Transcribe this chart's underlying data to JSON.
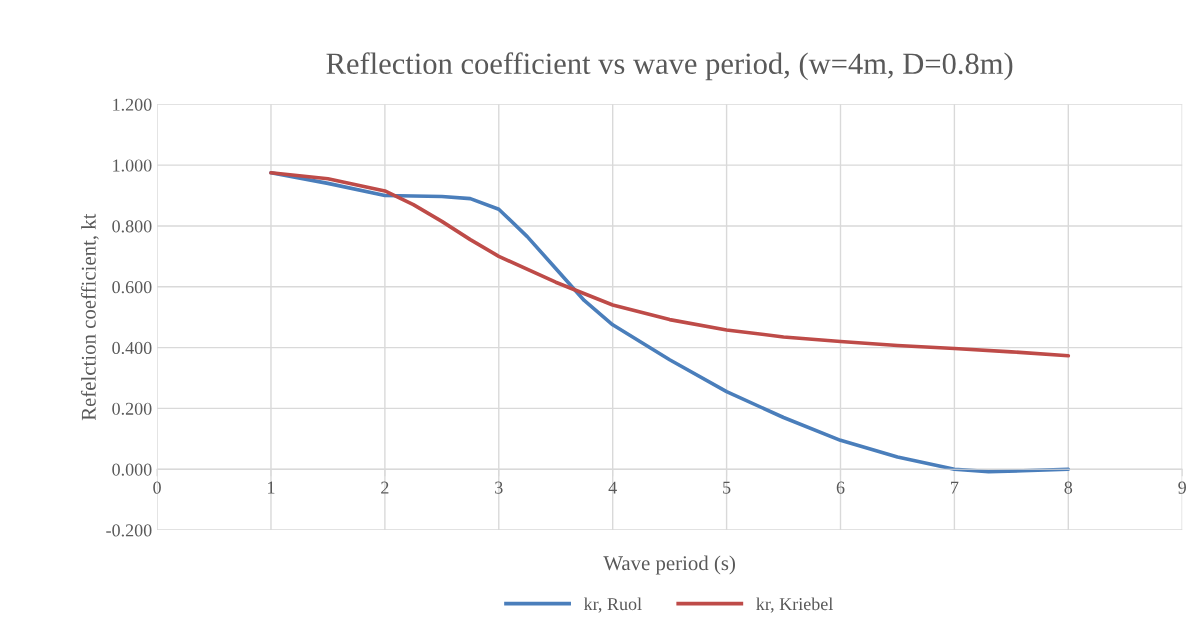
{
  "chart_data": {
    "type": "line",
    "title": "Reflection coefficient vs wave period, (w=4m, D=0.8m)",
    "xlabel": "Wave period (s)",
    "ylabel": "Refelction coefficient, kt",
    "series": [
      {
        "name": "kr, Ruol",
        "color": "#4a7ebb",
        "x": [
          1,
          1.5,
          2,
          2.5,
          2.75,
          3,
          3.25,
          3.5,
          3.75,
          4,
          4.5,
          5,
          5.5,
          6,
          6.5,
          7,
          7.3,
          7.6,
          8
        ],
        "values": [
          0.975,
          0.94,
          0.9,
          0.897,
          0.89,
          0.855,
          0.765,
          0.66,
          0.555,
          0.475,
          0.36,
          0.255,
          0.17,
          0.095,
          0.04,
          0.0,
          -0.008,
          -0.005,
          0.0
        ]
      },
      {
        "name": "kr, Kriebel",
        "color": "#be4b48",
        "x": [
          1,
          1.5,
          2,
          2.25,
          2.5,
          2.75,
          3,
          3.5,
          4,
          4.5,
          5,
          5.5,
          6,
          6.5,
          7,
          7.5,
          8
        ],
        "values": [
          0.975,
          0.955,
          0.915,
          0.87,
          0.815,
          0.755,
          0.7,
          0.615,
          0.54,
          0.492,
          0.458,
          0.435,
          0.42,
          0.407,
          0.397,
          0.386,
          0.373
        ]
      }
    ],
    "xlim": [
      0,
      9
    ],
    "xticks": [
      0,
      1,
      2,
      3,
      4,
      5,
      6,
      7,
      8,
      9
    ],
    "ylim": [
      -0.2,
      1.2
    ],
    "yticks": [
      {
        "value": -0.2,
        "label": "-0.200"
      },
      {
        "value": 0,
        "label": "0.000"
      },
      {
        "value": 0.2,
        "label": "0.200"
      },
      {
        "value": 0.4,
        "label": "0.400"
      },
      {
        "value": 0.6,
        "label": "0.600"
      },
      {
        "value": 0.8,
        "label": "0.800"
      },
      {
        "value": 1.0,
        "label": "1.000"
      },
      {
        "value": 1.2,
        "label": "1.200"
      }
    ],
    "grid": true,
    "legend": "bottom",
    "marker": "none",
    "line_style": "solid"
  }
}
